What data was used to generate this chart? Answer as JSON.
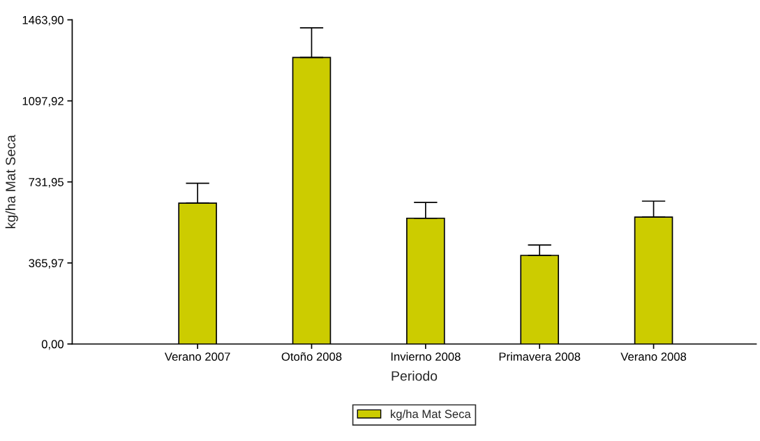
{
  "chart_data": {
    "type": "bar",
    "xlabel": "Periodo",
    "ylabel": "kg/ha Mat Seca",
    "categories": [
      "Verano 2007",
      "Otoño 2008",
      "Invierno 2008",
      "Primavera 2008",
      "Verano 2008"
    ],
    "series": [
      {
        "name": "kg/ha Mat Seca",
        "color": "#cccc00",
        "values": [
          636,
          1294,
          568,
          400,
          573
        ],
        "errors": [
          [
            636,
            726
          ],
          [
            1294,
            1428
          ],
          [
            568,
            639
          ],
          [
            400,
            447
          ],
          [
            573,
            645
          ]
        ]
      }
    ],
    "ylim": [
      0,
      1463.9
    ],
    "yticks": [
      {
        "value": 0,
        "label": "0,00"
      },
      {
        "value": 365.97,
        "label": "365,97"
      },
      {
        "value": 731.95,
        "label": "731,95"
      },
      {
        "value": 1097.92,
        "label": "1097,92"
      },
      {
        "value": 1463.9,
        "label": "1463,90"
      }
    ],
    "grid": false,
    "legend": "bottom"
  }
}
